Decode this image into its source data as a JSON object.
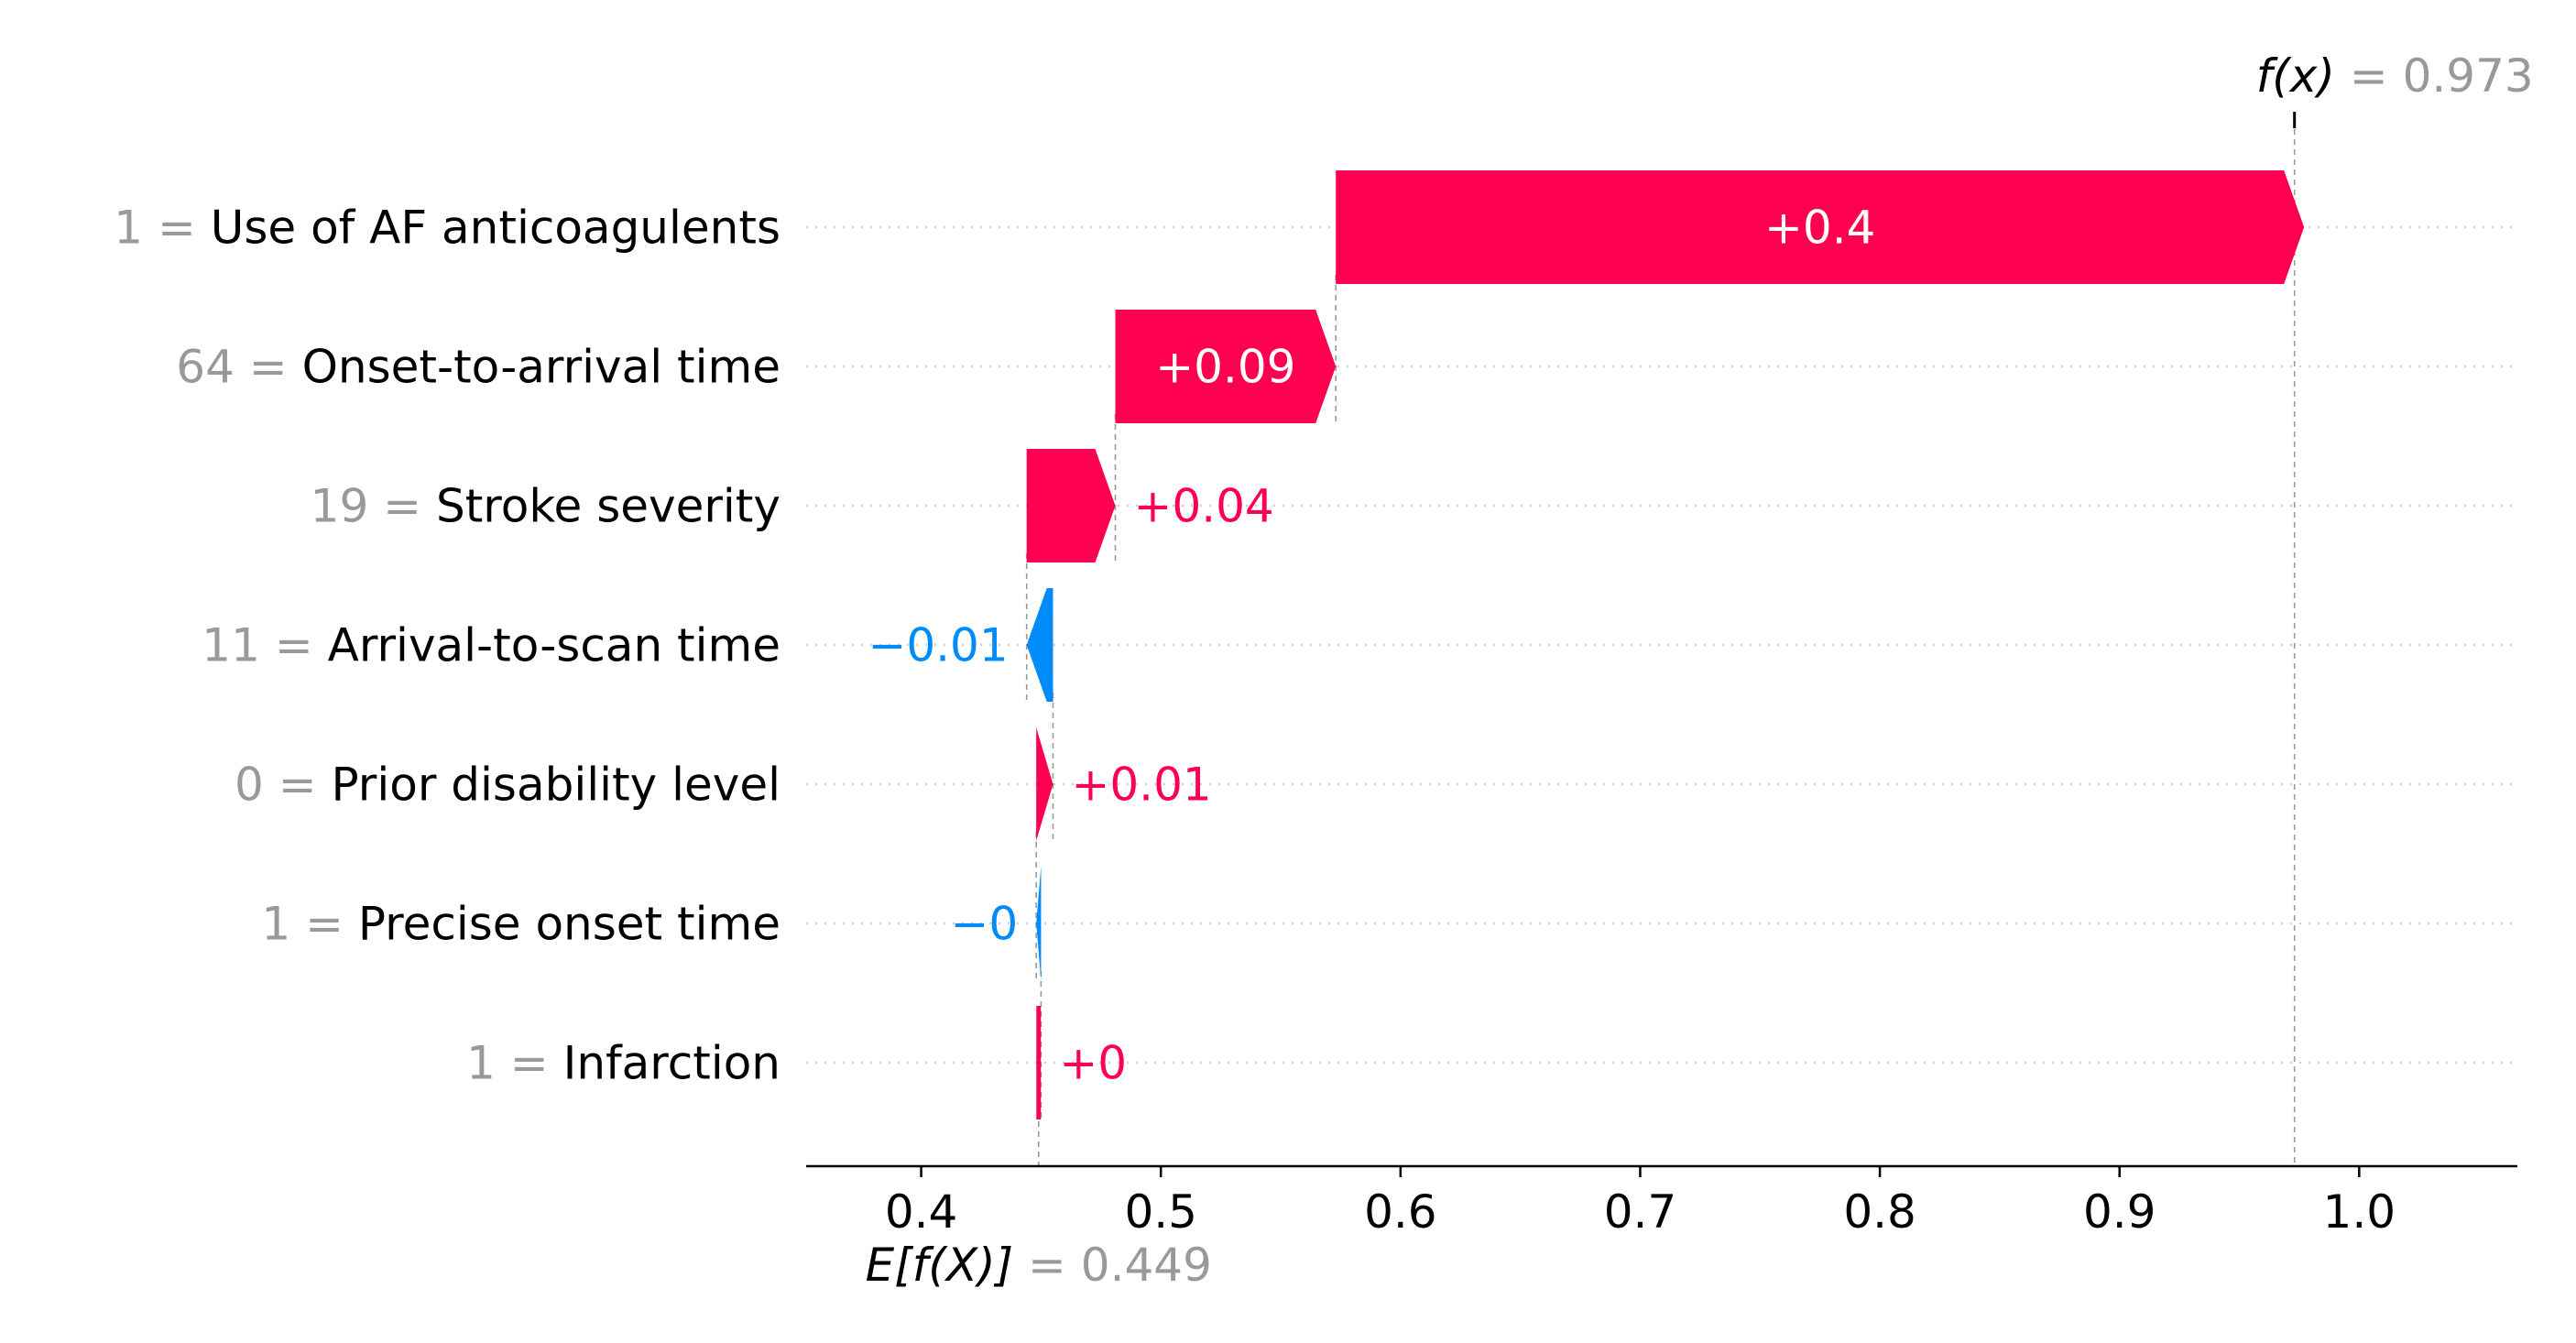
{
  "chart_data": {
    "type": "waterfall",
    "base_value": 0.449,
    "output_value": 0.973,
    "base_label": {
      "math": "E[f(X)]",
      "eq": " = ",
      "value": "0.449"
    },
    "output_label": {
      "math": "f(x)",
      "eq": " = ",
      "value": "0.973"
    },
    "xlim": [
      0.352,
      1.066
    ],
    "xticks": [
      0.4,
      0.5,
      0.6,
      0.7,
      0.8,
      0.9,
      1.0
    ],
    "xtick_labels": [
      "0.4",
      "0.5",
      "0.6",
      "0.7",
      "0.8",
      "0.9",
      "1.0"
    ],
    "features": [
      {
        "value": "1",
        "name": "Use of AF anticoagulents",
        "contribution": 0.404,
        "label": "+0.4"
      },
      {
        "value": "64",
        "name": "Onset-to-arrival time",
        "contribution": 0.092,
        "label": "+0.09"
      },
      {
        "value": "19",
        "name": "Stroke severity",
        "contribution": 0.037,
        "label": "+0.04"
      },
      {
        "value": "11",
        "name": "Arrival-to-scan time",
        "contribution": -0.011,
        "label": "−0.01"
      },
      {
        "value": "0",
        "name": "Prior disability level",
        "contribution": 0.007,
        "label": "+0.01"
      },
      {
        "value": "1",
        "name": "Precise onset time",
        "contribution": -0.002,
        "label": "−0"
      },
      {
        "value": "1",
        "name": "Infarction",
        "contribution": 0.001,
        "label": "+0"
      }
    ],
    "colors": {
      "positive": "#ff0051",
      "negative": "#008bfb",
      "muted": "#999999",
      "text": "#000000",
      "grid": "#cccccc"
    }
  }
}
